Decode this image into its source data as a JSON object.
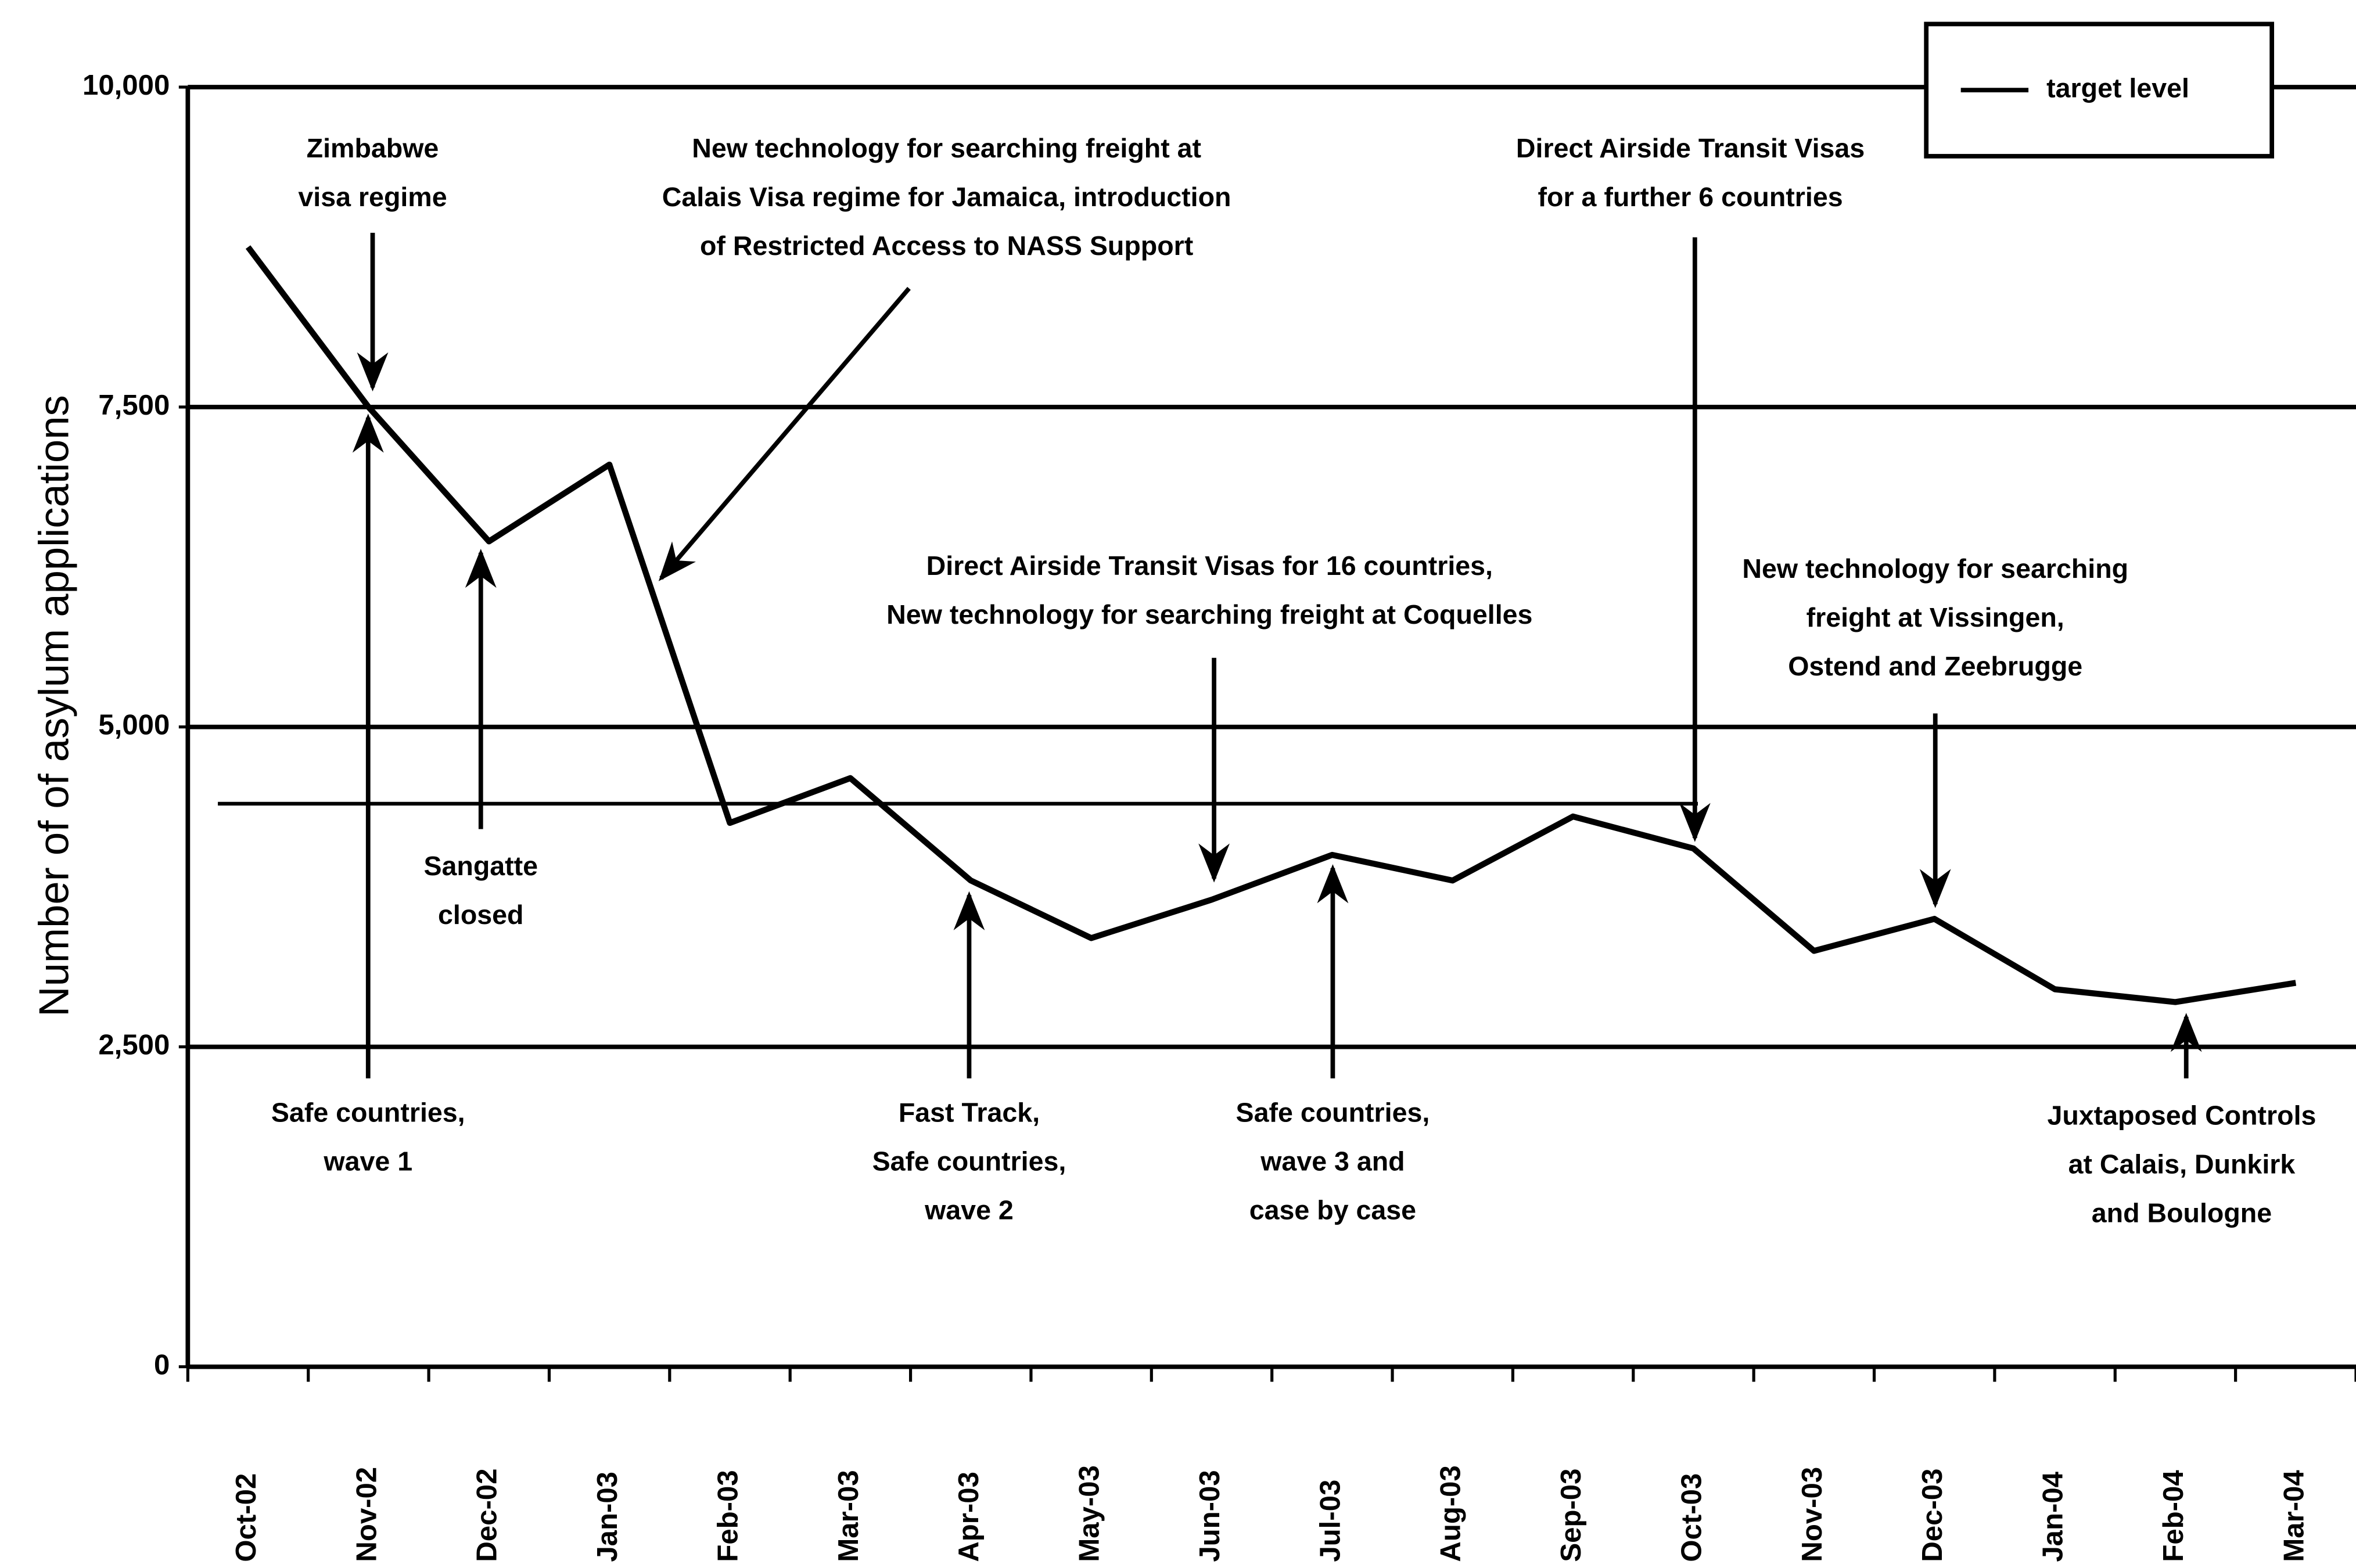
{
  "chart_data": {
    "type": "line",
    "y_label": "Number of of asylum applications",
    "categories": [
      "Oct-02",
      "Nov-02",
      "Dec-02",
      "Jan-03",
      "Feb-03",
      "Mar-03",
      "Apr-03",
      "May-03",
      "Jun-03",
      "Jul-03",
      "Aug-03",
      "Sep-03",
      "Oct-03",
      "Nov-03",
      "Dec-03",
      "Jan-04",
      "Feb-04",
      "Mar-04"
    ],
    "values": [
      8750,
      7500,
      6450,
      7050,
      4250,
      4600,
      3800,
      3350,
      3650,
      4000,
      3800,
      4300,
      4050,
      3250,
      3500,
      2950,
      2850,
      3000
    ],
    "color": "#000000",
    "ylim": [
      0,
      10000
    ],
    "yticks": [
      0,
      {
        "value": 2500,
        "label": "2,500"
      },
      {
        "value": 5000,
        "label": "5,000"
      },
      {
        "value": 7500,
        "label": "7,500"
      },
      {
        "value": 10000,
        "label": "10,000"
      }
    ],
    "grid": true,
    "reference_line": {
      "name": "target level",
      "value": 4400
    },
    "legend": "upper right",
    "annotations": [
      {
        "lines": [
          "Zimbabwe",
          "visa regime"
        ]
      },
      {
        "lines": [
          "New technology for searching freight at",
          "Calais Visa regime for Jamaica, introduction",
          "of Restricted Access to NASS Support"
        ]
      },
      {
        "lines": [
          "Direct Airside Transit Visas",
          "for a further 6 countries"
        ]
      },
      {
        "lines": [
          "Direct Airside Transit Visas for 16 countries,",
          "New technology for searching freight at Coquelles"
        ]
      },
      {
        "lines": [
          "New technology for searching",
          "freight at Vissingen,",
          "Ostend and Zeebrugge"
        ]
      },
      {
        "lines": [
          "Sangatte",
          "closed"
        ]
      },
      {
        "lines": [
          "Safe countries,",
          "wave 1"
        ]
      },
      {
        "lines": [
          "Fast Track,",
          "Safe countries,",
          "wave 2"
        ]
      },
      {
        "lines": [
          "Safe countries,",
          "wave 3 and",
          "case by case"
        ]
      },
      {
        "lines": [
          "Juxtaposed Controls",
          "at Calais, Dunkirk",
          "and Boulogne"
        ]
      }
    ]
  }
}
